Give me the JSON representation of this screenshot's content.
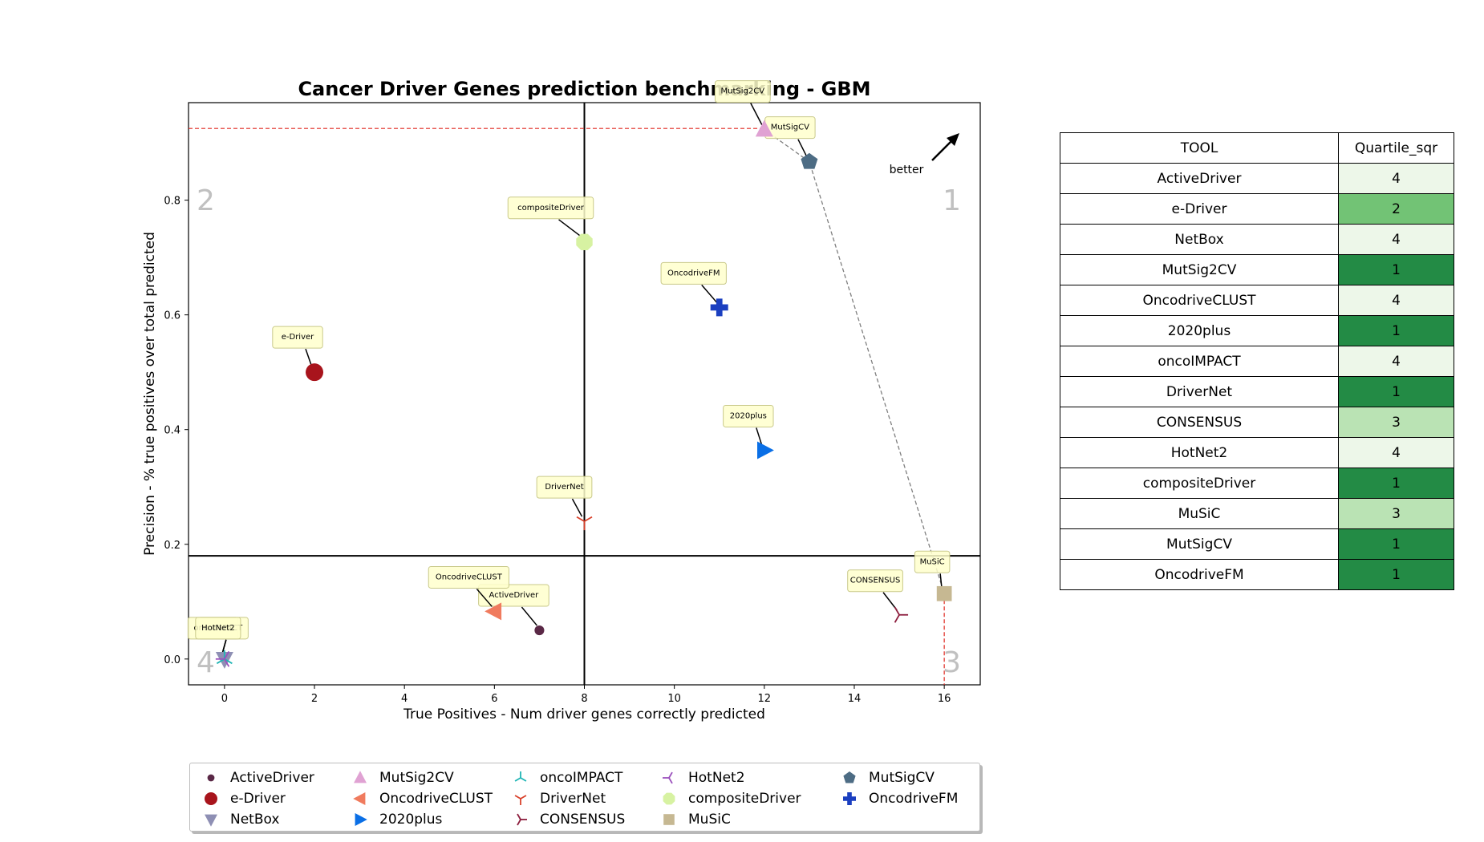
{
  "chart_data": {
    "type": "scatter",
    "title": "Cancer Driver Genes prediction benchmarking - GBM",
    "xlabel": "True Positives - Num driver genes correctly predicted",
    "ylabel": "Precision - % true positives over total predicted",
    "xlim": [
      -0.8,
      16.8
    ],
    "ylim": [
      -0.045,
      0.97
    ],
    "xticks": [
      0,
      2,
      4,
      6,
      8,
      10,
      12,
      14,
      16
    ],
    "yticks": [
      0.0,
      0.2,
      0.4,
      0.6,
      0.8
    ],
    "xtick_labels": [
      "0",
      "2",
      "4",
      "6",
      "8",
      "10",
      "12",
      "14",
      "16"
    ],
    "ytick_labels": [
      "0.0",
      "0.2",
      "0.4",
      "0.6",
      "0.8"
    ],
    "median_lines": {
      "x": 8,
      "y": 0.18
    },
    "best_reference": {
      "x": 16,
      "y": 0.925
    },
    "quadrant_labels": [
      "1",
      "2",
      "3",
      "4"
    ],
    "better_label": "better",
    "legend_placement": "bottom",
    "series": [
      {
        "name": "ActiveDriver",
        "x": 7,
        "y": 0.05,
        "marker": "circle-small",
        "color": "#5a2846"
      },
      {
        "name": "e-Driver",
        "x": 2,
        "y": 0.5,
        "marker": "circle",
        "color": "#a8141c"
      },
      {
        "name": "NetBox",
        "x": 0,
        "y": 0.0,
        "marker": "triangle-down",
        "color": "#8e8fb4"
      },
      {
        "name": "MutSig2CV",
        "x": 12,
        "y": 0.923,
        "marker": "triangle-up",
        "color": "#e0a2d3"
      },
      {
        "name": "OncodriveCLUST",
        "x": 6,
        "y": 0.083,
        "marker": "triangle-left",
        "color": "#f07b5e"
      },
      {
        "name": "2020plus",
        "x": 12,
        "y": 0.364,
        "marker": "triangle-right",
        "color": "#0a6fe6"
      },
      {
        "name": "oncoIMPACT",
        "x": 0,
        "y": 0.0,
        "marker": "tri-down",
        "color": "#20b5b5"
      },
      {
        "name": "DriverNet",
        "x": 8,
        "y": 0.24,
        "marker": "tri-up",
        "color": "#d9402a"
      },
      {
        "name": "CONSENSUS",
        "x": 15,
        "y": 0.077,
        "marker": "tri-left",
        "color": "#8c1c3c"
      },
      {
        "name": "HotNet2",
        "x": 0,
        "y": 0.0,
        "marker": "tri-right",
        "color": "#9b51bd"
      },
      {
        "name": "compositeDriver",
        "x": 8,
        "y": 0.727,
        "marker": "octagon",
        "color": "#d7f2a2"
      },
      {
        "name": "MuSiC",
        "x": 16,
        "y": 0.114,
        "marker": "square",
        "color": "#c6b892"
      },
      {
        "name": "MutSigCV",
        "x": 13,
        "y": 0.867,
        "marker": "pentagon",
        "color": "#4d6c84"
      },
      {
        "name": "OncodriveFM",
        "x": 11,
        "y": 0.613,
        "marker": "plus",
        "color": "#1b3fc0"
      }
    ],
    "pareto_frontier": [
      "MutSig2CV",
      "MutSigCV",
      "MuSiC"
    ]
  },
  "table": {
    "headers": [
      "TOOL",
      "Quartile_sqr"
    ],
    "rows": [
      {
        "tool": "ActiveDriver",
        "quartile": "4",
        "color": "#edf7e9"
      },
      {
        "tool": "e-Driver",
        "quartile": "2",
        "color": "#72c375"
      },
      {
        "tool": "NetBox",
        "quartile": "4",
        "color": "#edf7e9"
      },
      {
        "tool": "MutSig2CV",
        "quartile": "1",
        "color": "#238b45"
      },
      {
        "tool": "OncodriveCLUST",
        "quartile": "4",
        "color": "#edf7e9"
      },
      {
        "tool": "2020plus",
        "quartile": "1",
        "color": "#238b45"
      },
      {
        "tool": "oncoIMPACT",
        "quartile": "4",
        "color": "#edf7e9"
      },
      {
        "tool": "DriverNet",
        "quartile": "1",
        "color": "#238b45"
      },
      {
        "tool": "CONSENSUS",
        "quartile": "3",
        "color": "#bae3b4"
      },
      {
        "tool": "HotNet2",
        "quartile": "4",
        "color": "#edf7e9"
      },
      {
        "tool": "compositeDriver",
        "quartile": "1",
        "color": "#238b45"
      },
      {
        "tool": "MuSiC",
        "quartile": "3",
        "color": "#bae3b4"
      },
      {
        "tool": "MutSigCV",
        "quartile": "1",
        "color": "#238b45"
      },
      {
        "tool": "OncodriveFM",
        "quartile": "1",
        "color": "#238b45"
      }
    ]
  }
}
